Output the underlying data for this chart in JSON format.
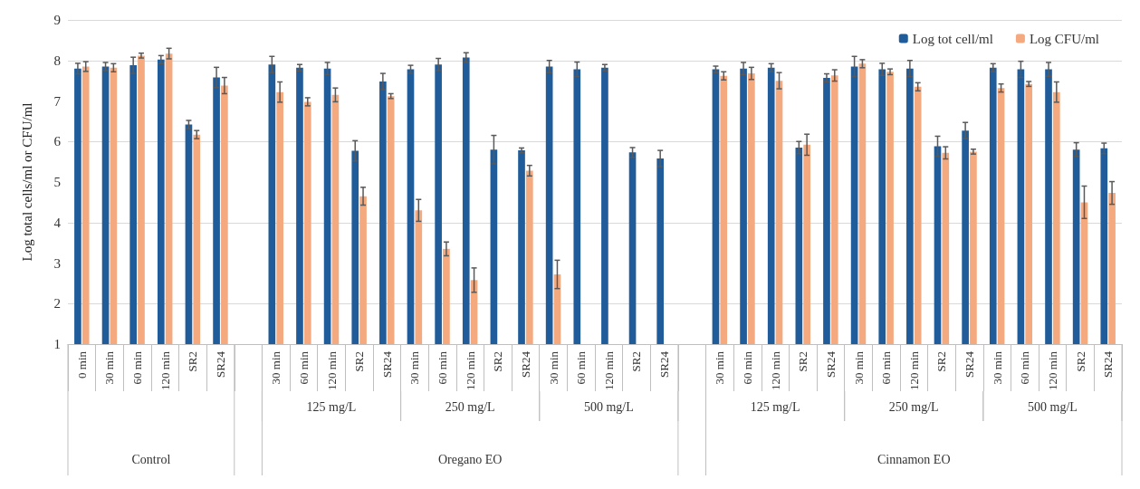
{
  "chart_data": {
    "type": "bar",
    "ylabel": "Log total cells/ml or CFU/ml",
    "categories": [
      "0 min",
      "30 min",
      "60 min",
      "120 min",
      "SR2",
      "SR24",
      null,
      "30 min",
      "60 min",
      "120 min",
      "SR2",
      "SR24",
      "30 min",
      "60 min",
      "120 min",
      "SR2",
      "SR24",
      "30 min",
      "60 min",
      "120 min",
      "SR2",
      "SR24",
      null,
      "30 min",
      "60 min",
      "120 min",
      "SR2",
      "SR24",
      "30 min",
      "60 min",
      "120 min",
      "SR2",
      "SR24",
      "30 min",
      "60 min",
      "120 min",
      "SR2",
      "SR24"
    ],
    "series": [
      {
        "name": "Log tot cell/ml",
        "color": "#1f5c99",
        "values": [
          7.8,
          7.85,
          7.88,
          8.02,
          6.42,
          7.58,
          null,
          7.9,
          7.82,
          7.8,
          5.77,
          7.48,
          7.78,
          7.9,
          8.07,
          5.8,
          5.78,
          7.85,
          7.78,
          7.82,
          5.73,
          5.58,
          null,
          7.78,
          7.8,
          7.82,
          5.85,
          7.57,
          7.85,
          7.78,
          7.8,
          5.88,
          6.27,
          7.82,
          7.78,
          7.78,
          5.8,
          5.83
        ],
        "errors": [
          0.13,
          0.1,
          0.2,
          0.1,
          0.1,
          0.25,
          null,
          0.2,
          0.08,
          0.15,
          0.25,
          0.2,
          0.1,
          0.15,
          0.12,
          0.35,
          0.06,
          0.15,
          0.18,
          0.08,
          0.12,
          0.2,
          null,
          0.08,
          0.15,
          0.1,
          0.15,
          0.1,
          0.25,
          0.15,
          0.2,
          0.25,
          0.2,
          0.1,
          0.2,
          0.17,
          0.17,
          0.13
        ]
      },
      {
        "name": "Log CFU/ml",
        "color": "#f4a97f",
        "values": [
          7.85,
          7.82,
          8.12,
          8.17,
          6.17,
          7.38,
          null,
          7.22,
          6.98,
          7.15,
          4.65,
          7.12,
          4.3,
          3.35,
          2.58,
          null,
          5.28,
          2.72,
          null,
          null,
          null,
          null,
          null,
          7.62,
          7.68,
          7.5,
          5.92,
          7.63,
          7.92,
          7.72,
          7.35,
          5.72,
          5.75,
          7.32,
          7.42,
          7.22,
          4.5,
          4.73
        ],
        "errors": [
          0.12,
          0.1,
          0.06,
          0.13,
          0.1,
          0.2,
          null,
          0.25,
          0.1,
          0.17,
          0.22,
          0.06,
          0.27,
          0.17,
          0.3,
          null,
          0.13,
          0.35,
          null,
          null,
          null,
          null,
          null,
          0.1,
          0.15,
          0.2,
          0.26,
          0.14,
          0.1,
          0.07,
          0.1,
          0.15,
          0.06,
          0.1,
          0.06,
          0.25,
          0.4,
          0.28
        ]
      }
    ],
    "ylim": [
      1,
      9
    ],
    "yticks": [
      1,
      2,
      3,
      4,
      5,
      6,
      7,
      8,
      9
    ],
    "grid": "y",
    "legend": "top right",
    "annotations": [
      "125 mg/L",
      "250 mg/L",
      "500 mg/L",
      "125 mg/L",
      "250 mg/L",
      "500 mg/L",
      "Control",
      "Oregano EO",
      "Cinnamon EO"
    ]
  }
}
